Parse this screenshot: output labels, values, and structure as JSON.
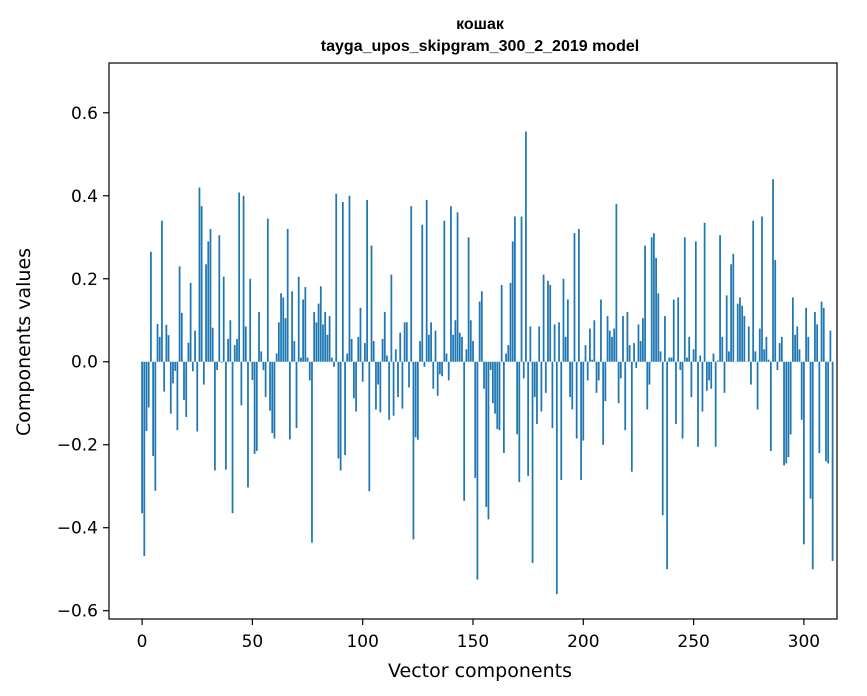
{
  "chart_data": {
    "type": "bar",
    "title": "кошак",
    "subtitle": "tayga_upos_skipgram_300_2_2019 model",
    "xlabel": "Vector components",
    "ylabel": "Components values",
    "xlim": [
      -15,
      315
    ],
    "ylim": [
      -0.62,
      0.72
    ],
    "xticks": [
      0,
      50,
      100,
      150,
      200,
      250,
      300
    ],
    "yticks": [
      -0.6,
      -0.4,
      -0.2,
      0.0,
      0.2,
      0.4,
      0.6
    ],
    "ytick_labels": [
      "−0.6",
      "−0.4",
      "−0.2",
      "0.0",
      "0.2",
      "0.4",
      "0.6"
    ],
    "grid": false,
    "bar_color": "#1f77b4",
    "values": [
      -0.365,
      -0.468,
      -0.167,
      -0.11,
      0.265,
      -0.227,
      -0.311,
      0.091,
      0.06,
      0.34,
      -0.072,
      0.089,
      0.064,
      -0.125,
      -0.052,
      -0.022,
      -0.165,
      0.23,
      0.118,
      -0.092,
      -0.133,
      0.046,
      0.19,
      -0.023,
      0.075,
      -0.168,
      0.42,
      0.375,
      -0.055,
      0.235,
      0.29,
      0.32,
      0.082,
      -0.262,
      -0.02,
      0.305,
      -0.002,
      0.205,
      -0.26,
      0.055,
      0.1,
      -0.365,
      0.04,
      0.055,
      0.408,
      -0.105,
      0.4,
      0.085,
      -0.303,
      0.2,
      -0.044,
      -0.222,
      -0.215,
      0.12,
      0.025,
      -0.02,
      -0.085,
      0.345,
      -0.118,
      -0.172,
      -0.185,
      0.02,
      0.095,
      0.165,
      0.155,
      0.105,
      0.32,
      -0.187,
      0.17,
      0.05,
      -0.16,
      0.205,
      0.01,
      0.15,
      0.18,
      0.01,
      -0.045,
      -0.436,
      0.12,
      0.095,
      0.14,
      0.182,
      0.09,
      0.12,
      0.065,
      0.11,
      0.01,
      -0.012,
      0.405,
      -0.233,
      -0.262,
      0.385,
      -0.225,
      0.02,
      0.4,
      0.055,
      -0.088,
      -0.12,
      0.06,
      0.13,
      -0.048,
      0.045,
      0.39,
      -0.312,
      0.28,
      0.05,
      -0.115,
      -0.055,
      -0.122,
      0.055,
      0.12,
      0.015,
      -0.14,
      0.21,
      -0.13,
      0.03,
      -0.085,
      0.07,
      -0.113,
      0.095,
      0.095,
      -0.062,
      0.375,
      -0.428,
      -0.182,
      -0.188,
      0.05,
      0.33,
      -0.012,
      0.39,
      0.065,
      0.095,
      -0.065,
      0.075,
      -0.082,
      -0.03,
      -0.035,
      0.34,
      0.02,
      -0.045,
      0.375,
      0.065,
      0.1,
      0.36,
      0.07,
      0.06,
      -0.335,
      0.03,
      0.3,
      0.1,
      0.05,
      -0.28,
      -0.525,
      0.145,
      0.17,
      -0.065,
      -0.35,
      -0.38,
      -0.02,
      -0.1,
      -0.125,
      -0.162,
      -0.165,
      0.185,
      -0.22,
      0.02,
      0.04,
      0.19,
      0.29,
      0.35,
      -0.175,
      -0.29,
      0.35,
      -0.04,
      0.555,
      -0.275,
      0.085,
      -0.485,
      -0.085,
      -0.15,
      0.085,
      -0.12,
      0.21,
      -0.075,
      0.195,
      0.185,
      -0.16,
      0.09,
      -0.56,
      0.095,
      -0.285,
      0.2,
      0.06,
      0.15,
      -0.085,
      -0.115,
      0.31,
      -0.185,
      0.32,
      -0.285,
      -0.19,
      0.04,
      -0.045,
      0.08,
      0.005,
      0.1,
      -0.075,
      -0.045,
      0.15,
      -0.2,
      -0.095,
      0.11,
      0.075,
      0.06,
      0.08,
      0.38,
      -0.1,
      -0.04,
      0.11,
      -0.165,
      0.12,
      0.04,
      -0.265,
      0.045,
      -0.015,
      0.09,
      0.05,
      0.105,
      0.28,
      -0.115,
      -0.055,
      0.3,
      0.31,
      0.25,
      0.165,
      0.025,
      -0.37,
      0.11,
      -0.5,
      0.01,
      0.01,
      0.15,
      -0.15,
      0.155,
      -0.02,
      -0.185,
      0.3,
      0.01,
      0.06,
      -0.085,
      0.03,
      0.29,
      -0.205,
      0.015,
      -0.12,
      0.335,
      -0.07,
      -0.045,
      -0.065,
      0.02,
      -0.205,
      0.003,
      0.305,
      0.06,
      -0.075,
      0.16,
      0.025,
      0.235,
      0.26,
      0.0,
      0.14,
      0.155,
      0.135,
      0.11,
      0.0,
      0.085,
      -0.055,
      0.34,
      0.025,
      -0.115,
      0.08,
      0.35,
      0.03,
      0.06,
      0.005,
      -0.215,
      0.44,
      0.245,
      -0.02,
      0.045,
      0.06,
      -0.25,
      -0.245,
      -0.23,
      -0.175,
      0.155,
      0.065,
      0.085,
      0.03,
      -0.14,
      -0.44,
      0.13,
      0.06,
      -0.33,
      -0.5,
      0.12,
      0.09,
      -0.22,
      0.145,
      0.13,
      -0.24,
      -0.245,
      0.075,
      -0.48
    ]
  }
}
